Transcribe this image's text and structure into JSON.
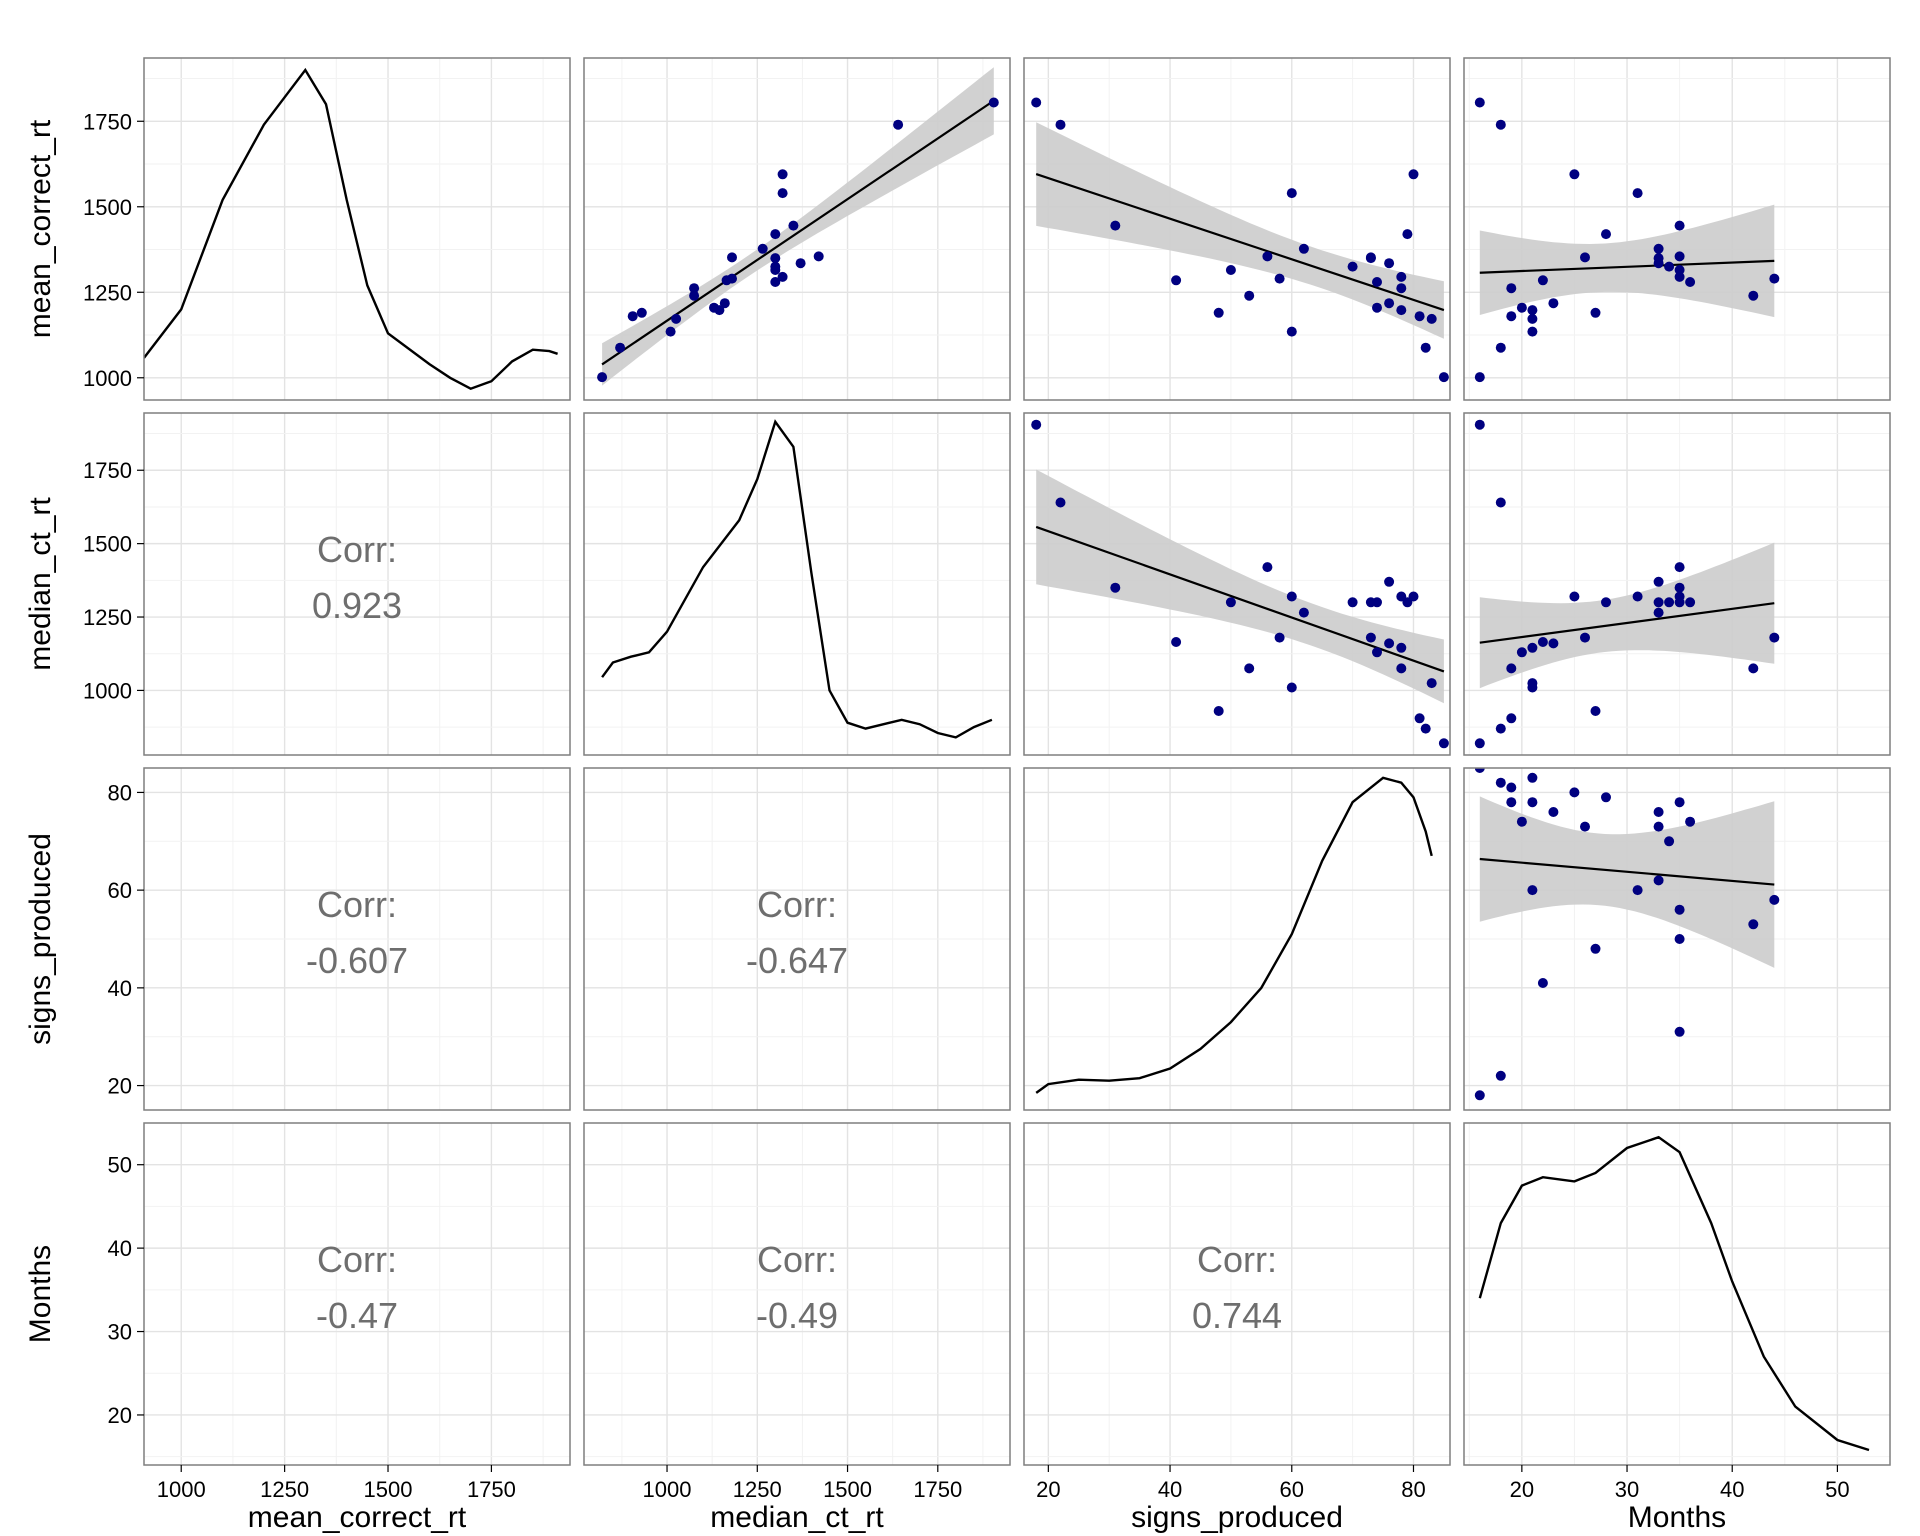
{
  "chart_data": {
    "type": "scatter",
    "variables": [
      "mean_correct_rt",
      "median_ct_rt",
      "signs_produced",
      "Months"
    ],
    "axis_ranges": {
      "mean_correct_rt": [
        910,
        1940
      ],
      "median_ct_rt": [
        770,
        1950
      ],
      "signs_produced": [
        16,
        86
      ],
      "Months": [
        14.5,
        55
      ]
    },
    "y_ranges": {
      "mean_correct_rt": [
        935,
        1935
      ],
      "median_ct_rt": [
        780,
        1945
      ],
      "signs_produced": [
        15,
        85
      ],
      "Months": [
        14,
        55
      ]
    },
    "ticks": {
      "mean_correct_rt": [
        1000,
        1250,
        1500,
        1750
      ],
      "median_ct_rt": [
        1000,
        1250,
        1500,
        1750
      ],
      "signs_produced": [
        20,
        40,
        60,
        80
      ],
      "Months": [
        20,
        30,
        40,
        50
      ]
    },
    "y_ticks": {
      "mean_correct_rt": [
        1000,
        1250,
        1500,
        1750
      ],
      "median_ct_rt": [
        1000,
        1250,
        1500,
        1750
      ],
      "signs_produced": [
        20,
        40,
        60,
        80
      ],
      "Months": [
        20,
        30,
        40,
        50
      ]
    },
    "observations": [
      {
        "mean_correct_rt": 1002,
        "median_ct_rt": 820,
        "signs_produced": 85,
        "Months": 16
      },
      {
        "mean_correct_rt": 1088,
        "median_ct_rt": 870,
        "signs_produced": 82,
        "Months": 18
      },
      {
        "mean_correct_rt": 1180,
        "median_ct_rt": 905,
        "signs_produced": 81,
        "Months": 19
      },
      {
        "mean_correct_rt": 1135,
        "median_ct_rt": 1010,
        "signs_produced": 60,
        "Months": 21
      },
      {
        "mean_correct_rt": 1172,
        "median_ct_rt": 1025,
        "signs_produced": 83,
        "Months": 21
      },
      {
        "mean_correct_rt": 1262,
        "median_ct_rt": 1075,
        "signs_produced": 78,
        "Months": 19
      },
      {
        "mean_correct_rt": 1205,
        "median_ct_rt": 1130,
        "signs_produced": 74,
        "Months": 20
      },
      {
        "mean_correct_rt": 1198,
        "median_ct_rt": 1145,
        "signs_produced": 78,
        "Months": 21
      },
      {
        "mean_correct_rt": 1218,
        "median_ct_rt": 1160,
        "signs_produced": 76,
        "Months": 23
      },
      {
        "mean_correct_rt": 1285,
        "median_ct_rt": 1165,
        "signs_produced": 41,
        "Months": 22
      },
      {
        "mean_correct_rt": 1352,
        "median_ct_rt": 1180,
        "signs_produced": 73,
        "Months": 26
      },
      {
        "mean_correct_rt": 1377,
        "median_ct_rt": 1265,
        "signs_produced": 62,
        "Months": 33
      },
      {
        "mean_correct_rt": 1420,
        "median_ct_rt": 1300,
        "signs_produced": 79,
        "Months": 28
      },
      {
        "mean_correct_rt": 1350,
        "median_ct_rt": 1300,
        "signs_produced": 73,
        "Months": 33
      },
      {
        "mean_correct_rt": 1325,
        "median_ct_rt": 1300,
        "signs_produced": 70,
        "Months": 34
      },
      {
        "mean_correct_rt": 1315,
        "median_ct_rt": 1300,
        "signs_produced": 50,
        "Months": 35
      },
      {
        "mean_correct_rt": 1280,
        "median_ct_rt": 1300,
        "signs_produced": 74,
        "Months": 36
      },
      {
        "mean_correct_rt": 1295,
        "median_ct_rt": 1320,
        "signs_produced": 78,
        "Months": 35
      },
      {
        "mean_correct_rt": 1540,
        "median_ct_rt": 1320,
        "signs_produced": 60,
        "Months": 31
      },
      {
        "mean_correct_rt": 1445,
        "median_ct_rt": 1350,
        "signs_produced": 31,
        "Months": 35
      },
      {
        "mean_correct_rt": 1335,
        "median_ct_rt": 1370,
        "signs_produced": 76,
        "Months": 33
      },
      {
        "mean_correct_rt": 1355,
        "median_ct_rt": 1420,
        "signs_produced": 56,
        "Months": 35
      },
      {
        "mean_correct_rt": 1740,
        "median_ct_rt": 1640,
        "signs_produced": 22,
        "Months": 18
      },
      {
        "mean_correct_rt": 1805,
        "median_ct_rt": 1905,
        "signs_produced": 18,
        "Months": 16
      },
      {
        "mean_correct_rt": 1595,
        "median_ct_rt": 1320,
        "signs_produced": 80,
        "Months": 25
      },
      {
        "mean_correct_rt": 1240,
        "median_ct_rt": 1075,
        "signs_produced": 53,
        "Months": 42
      },
      {
        "mean_correct_rt": 1190,
        "median_ct_rt": 930,
        "signs_produced": 48,
        "Months": 27
      },
      {
        "mean_correct_rt": 1290,
        "median_ct_rt": 1180,
        "signs_produced": 58,
        "Months": 44
      }
    ],
    "density_curves": {
      "mean_correct_rt": [
        [
          910,
          1058
        ],
        [
          1000,
          1200
        ],
        [
          1100,
          1520
        ],
        [
          1200,
          1740
        ],
        [
          1250,
          1820
        ],
        [
          1300,
          1900
        ],
        [
          1350,
          1800
        ],
        [
          1400,
          1520
        ],
        [
          1450,
          1270
        ],
        [
          1500,
          1130
        ],
        [
          1600,
          1040
        ],
        [
          1650,
          1000
        ],
        [
          1700,
          968
        ],
        [
          1750,
          990
        ],
        [
          1800,
          1048
        ],
        [
          1850,
          1082
        ],
        [
          1890,
          1078
        ],
        [
          1910,
          1070
        ]
      ],
      "median_ct_rt": [
        [
          820,
          1045
        ],
        [
          850,
          1095
        ],
        [
          900,
          1115
        ],
        [
          950,
          1130
        ],
        [
          1000,
          1200
        ],
        [
          1100,
          1420
        ],
        [
          1200,
          1580
        ],
        [
          1250,
          1720
        ],
        [
          1300,
          1915
        ],
        [
          1350,
          1830
        ],
        [
          1400,
          1400
        ],
        [
          1450,
          1000
        ],
        [
          1500,
          890
        ],
        [
          1550,
          870
        ],
        [
          1650,
          900
        ],
        [
          1700,
          885
        ],
        [
          1750,
          855
        ],
        [
          1800,
          840
        ],
        [
          1850,
          875
        ],
        [
          1900,
          900
        ]
      ],
      "signs_produced": [
        [
          18,
          18.5
        ],
        [
          20,
          20.3
        ],
        [
          25,
          21.2
        ],
        [
          30,
          21.0
        ],
        [
          35,
          21.5
        ],
        [
          40,
          23.5
        ],
        [
          45,
          27.5
        ],
        [
          50,
          33
        ],
        [
          55,
          40
        ],
        [
          60,
          51
        ],
        [
          65,
          66
        ],
        [
          70,
          78
        ],
        [
          75,
          83
        ],
        [
          78,
          82
        ],
        [
          80,
          79
        ],
        [
          82,
          72
        ],
        [
          83,
          67
        ]
      ],
      "Months": [
        [
          16,
          34
        ],
        [
          18,
          43
        ],
        [
          20,
          47.5
        ],
        [
          22,
          48.5
        ],
        [
          25,
          48
        ],
        [
          27,
          49
        ],
        [
          30,
          52
        ],
        [
          33,
          53.3
        ],
        [
          35,
          51.5
        ],
        [
          38,
          43
        ],
        [
          40,
          36
        ],
        [
          43,
          27
        ],
        [
          46,
          21
        ],
        [
          50,
          17
        ],
        [
          53,
          15.8
        ]
      ]
    },
    "correlations": [
      {
        "row": "median_ct_rt",
        "col": "mean_correct_rt",
        "label": "Corr:",
        "value": "0.923"
      },
      {
        "row": "signs_produced",
        "col": "mean_correct_rt",
        "label": "Corr:",
        "value": "-0.607"
      },
      {
        "row": "signs_produced",
        "col": "median_ct_rt",
        "label": "Corr:",
        "value": "-0.647"
      },
      {
        "row": "Months",
        "col": "mean_correct_rt",
        "label": "Corr:",
        "value": "-0.47"
      },
      {
        "row": "Months",
        "col": "median_ct_rt",
        "label": "Corr:",
        "value": "-0.49"
      },
      {
        "row": "Months",
        "col": "signs_produced",
        "label": "Corr:",
        "value": "0.744"
      }
    ],
    "point_color": "#000080",
    "band_color": "#cccccc",
    "grid": true,
    "legend": "none"
  }
}
